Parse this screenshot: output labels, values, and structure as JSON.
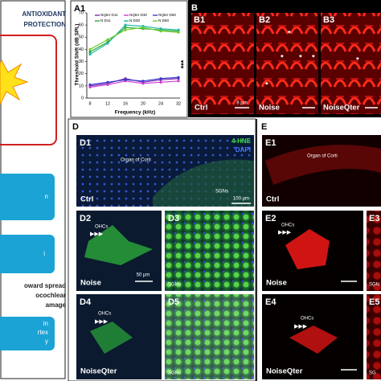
{
  "left_panel": {
    "title": [
      "ANTIOXIDANT",
      "PROTECTION"
    ],
    "boxes": [
      "n",
      "i",
      "in",
      "rtex",
      "y"
    ],
    "note": [
      "oward spread",
      "ocochlear",
      "amage"
    ]
  },
  "chart_data": {
    "type": "line",
    "title": "A1",
    "y_label": "Threshold Shift (dB SPL)",
    "x_label": "Frequency (kHz)",
    "annotation": "***",
    "categories": [
      "8",
      "12",
      "16",
      "20",
      "24",
      "32"
    ],
    "ylim": [
      0,
      70
    ],
    "yticks": [
      0,
      10,
      20,
      30,
      40,
      50,
      60,
      70
    ],
    "series": [
      {
        "name": "NQter D11",
        "color": "#7a2fb0",
        "values": [
          10,
          12,
          16,
          13,
          15,
          16
        ]
      },
      {
        "name": "NQter D30",
        "color": "#d03ad0",
        "values": [
          9,
          11,
          14,
          12,
          13,
          14
        ]
      },
      {
        "name": "NQter D60",
        "color": "#3a3ad0",
        "values": [
          11,
          13,
          15,
          14,
          16,
          17
        ]
      },
      {
        "name": "N D11",
        "color": "#2fa83a",
        "values": [
          38,
          46,
          58,
          57,
          56,
          55
        ]
      },
      {
        "name": "N D30",
        "color": "#1fb8a8",
        "values": [
          36,
          45,
          60,
          59,
          57,
          56
        ]
      },
      {
        "name": "N D60",
        "color": "#6acc2a",
        "values": [
          40,
          48,
          56,
          58,
          55,
          54
        ]
      }
    ]
  },
  "figure": {
    "B": {
      "label": "B",
      "sub": [
        "B1",
        "B2",
        "B3"
      ],
      "conditions": [
        "Ctrl",
        "Noise",
        "NoiseQter"
      ],
      "scale": "8 μm",
      "asterisks": [
        "*",
        "*",
        "*",
        "*",
        "*",
        "*"
      ]
    },
    "D": {
      "label": "D",
      "sub": [
        "D1",
        "D2",
        "D3",
        "D4",
        "D5"
      ],
      "region": "Organ of Corti",
      "stains": [
        "4-HNE",
        "DAPI"
      ],
      "sgn": "SGNs",
      "scale1": "100 μm",
      "scale2": "50 μm",
      "conditions": [
        "Ctrl",
        "Noise",
        "NoiseQter"
      ],
      "ohcs": [
        "OHCs",
        "OHCs"
      ],
      "sgns": [
        "SGNs",
        "SGNs"
      ]
    },
    "E": {
      "label": "E",
      "sub": [
        "E1",
        "E2",
        "E3",
        "E4",
        "E5"
      ],
      "region": "Organ of Corti",
      "conditions": [
        "Ctrl",
        "Noise",
        "NoiseQter"
      ],
      "ohcs": [
        "OHCs",
        "OHCs"
      ],
      "sgns": [
        "SGN",
        "SG"
      ]
    }
  }
}
